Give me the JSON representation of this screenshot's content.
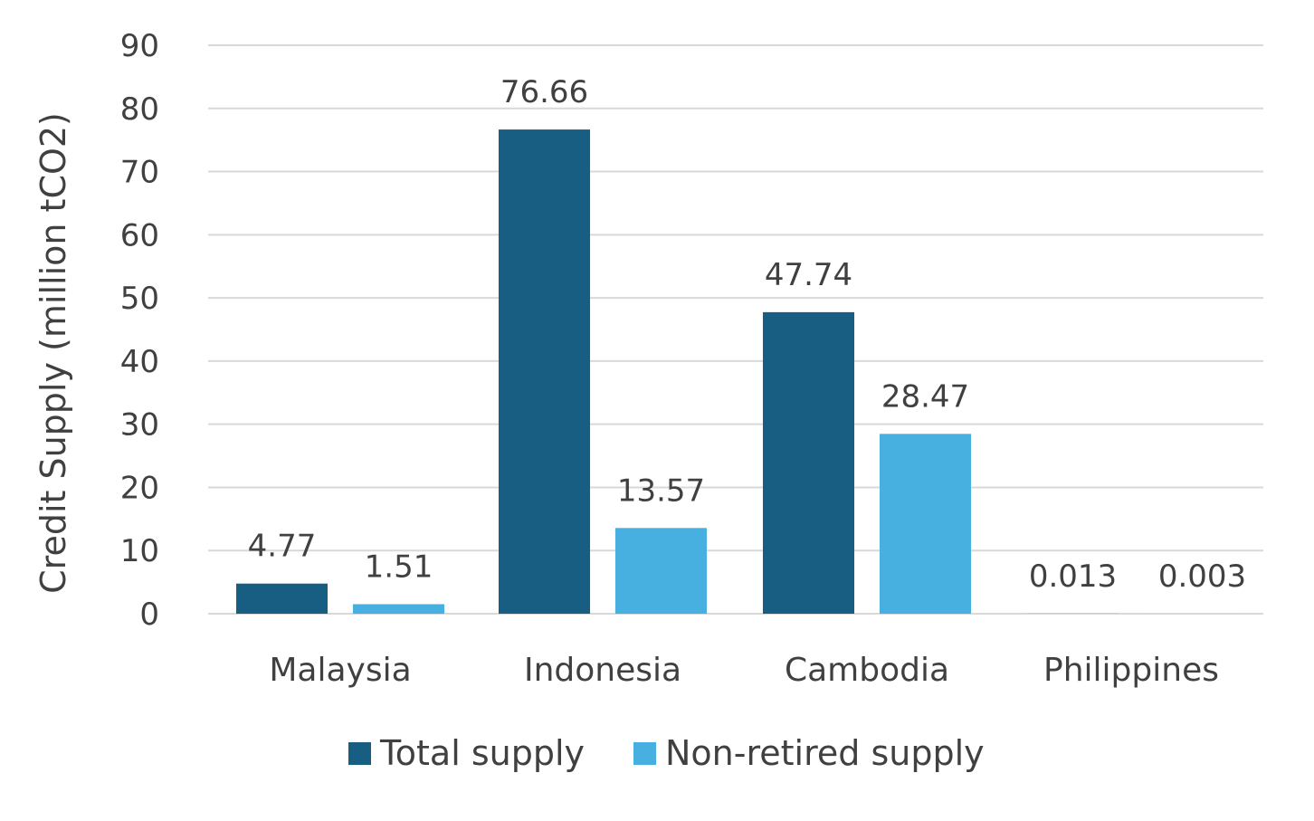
{
  "chart_data": {
    "type": "bar",
    "categories": [
      "Malaysia",
      "Indonesia",
      "Cambodia",
      "Philippines"
    ],
    "series": [
      {
        "name": "Total supply",
        "color": "#175e82",
        "values": [
          4.77,
          76.66,
          47.74,
          0.013
        ],
        "labels": [
          "4.77",
          "76.66",
          "47.74",
          "0.013"
        ]
      },
      {
        "name": "Non-retired supply",
        "color": "#47b0e0",
        "values": [
          1.51,
          13.57,
          28.47,
          0.003
        ],
        "labels": [
          "1.51",
          "13.57",
          "28.47",
          "0.003"
        ]
      }
    ],
    "ylabel": "Credit Supply (million tCO2)",
    "xlabel": "",
    "ylim": [
      0,
      90
    ],
    "yticks": [
      "0",
      "10",
      "20",
      "30",
      "40",
      "50",
      "60",
      "70",
      "80",
      "90"
    ],
    "grid": true,
    "legend_position": "bottom"
  }
}
